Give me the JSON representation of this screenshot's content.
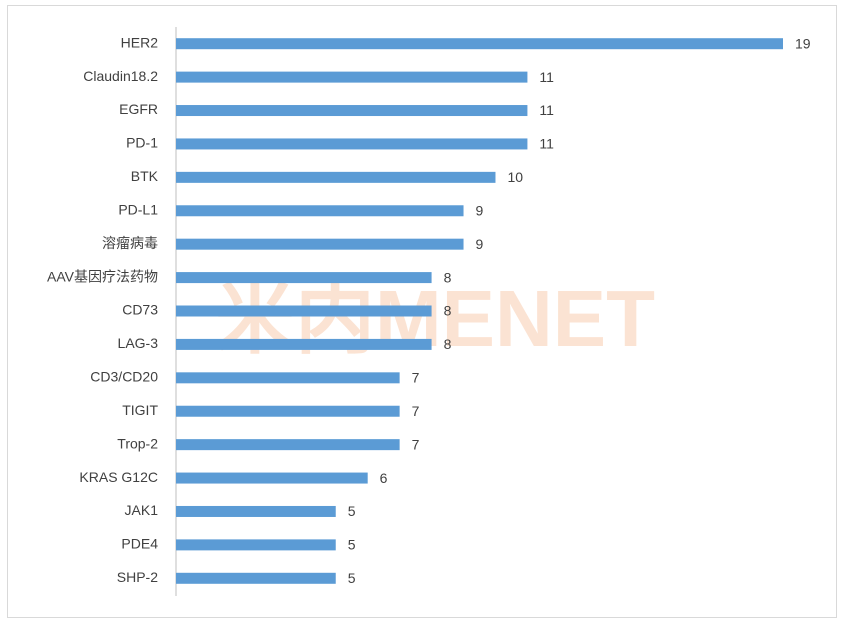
{
  "chart_data": {
    "type": "bar",
    "horizontal": true,
    "color": "#5b9bd5",
    "watermark": "米内MENET",
    "categories": [
      "HER2",
      "Claudin18.2",
      "EGFR",
      "PD-1",
      "BTK",
      "PD-L1",
      "溶瘤病毒",
      "AAV基因疗法药物",
      "CD73",
      "LAG-3",
      "CD3/CD20",
      "TIGIT",
      "Trop-2",
      "KRAS G12C",
      "JAK1",
      "PDE4",
      "SHP-2"
    ],
    "values": [
      19,
      11,
      11,
      11,
      10,
      9,
      9,
      8,
      8,
      8,
      7,
      7,
      7,
      6,
      5,
      5,
      5
    ]
  }
}
